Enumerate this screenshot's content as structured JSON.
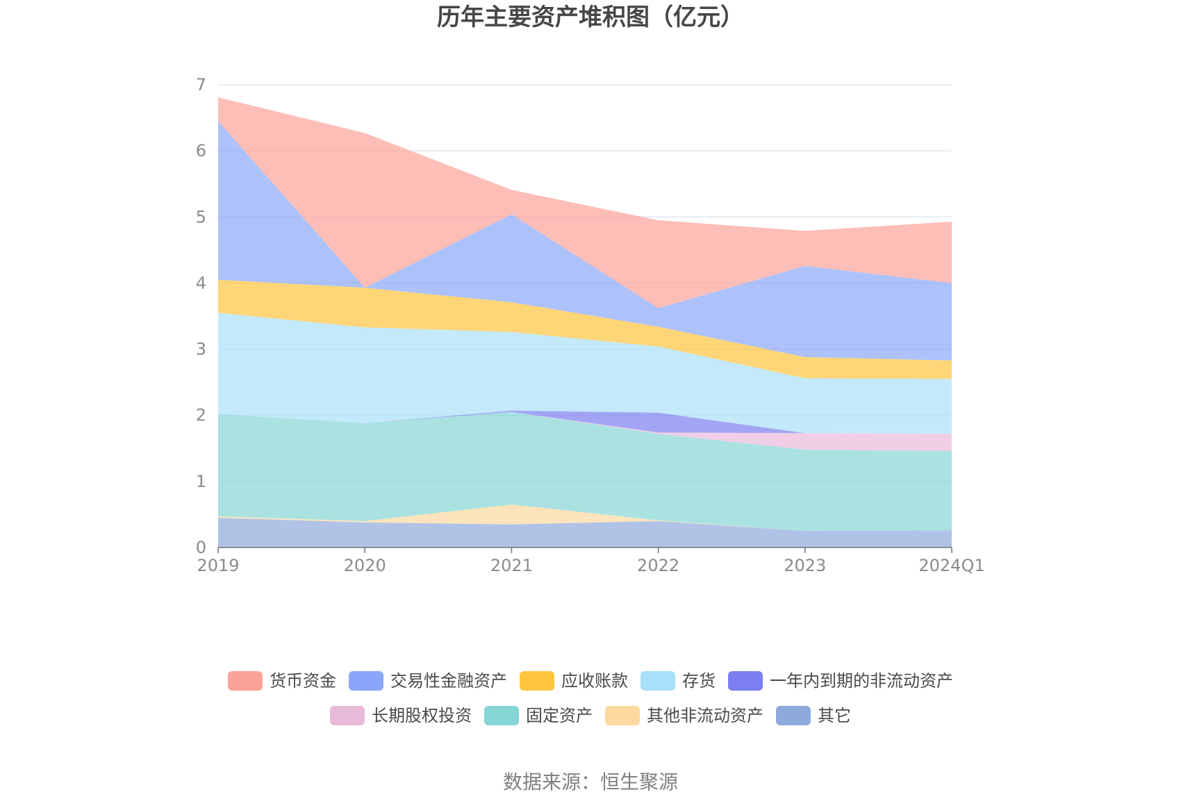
{
  "source": "数据来源：恒生聚源",
  "chart_data": {
    "type": "area",
    "stacked": true,
    "title": "历年主要资产堆积图（亿元）",
    "xlabel": "",
    "ylabel": "",
    "ylim": [
      0,
      7
    ],
    "y_ticks": [
      0,
      1,
      2,
      3,
      4,
      5,
      6,
      7
    ],
    "grid": true,
    "legend_position": "bottom",
    "categories": [
      "2019",
      "2020",
      "2021",
      "2022",
      "2023",
      "2024Q1"
    ],
    "series": [
      {
        "name": "其它",
        "color": "#8eaadc",
        "values": [
          0.45,
          0.38,
          0.35,
          0.4,
          0.25,
          0.26
        ]
      },
      {
        "name": "其他非流动资产",
        "color": "#fdd9a0",
        "values": [
          0.02,
          0.02,
          0.3,
          0.01,
          0.0,
          0.0
        ]
      },
      {
        "name": "固定资产",
        "color": "#86d5d5",
        "values": [
          1.55,
          1.48,
          1.4,
          1.31,
          1.23,
          1.2
        ]
      },
      {
        "name": "长期股权投资",
        "color": "#e9b9da",
        "values": [
          0.0,
          0.0,
          0.0,
          0.02,
          0.25,
          0.26
        ]
      },
      {
        "name": "一年内到期的非流动资产",
        "color": "#7b7ff0",
        "values": [
          0.0,
          0.0,
          0.02,
          0.3,
          0.0,
          0.0
        ]
      },
      {
        "name": "存货",
        "color": "#a9e0fa",
        "values": [
          1.53,
          1.45,
          1.19,
          1.0,
          0.83,
          0.83
        ]
      },
      {
        "name": "应收账款",
        "color": "#fec53d",
        "values": [
          0.5,
          0.6,
          0.45,
          0.3,
          0.32,
          0.28
        ]
      },
      {
        "name": "交易性金融资产",
        "color": "#8aa6fa",
        "values": [
          2.4,
          0.0,
          1.33,
          0.28,
          1.38,
          1.17
        ]
      },
      {
        "name": "货币资金",
        "color": "#fba398",
        "values": [
          0.36,
          2.34,
          0.37,
          1.33,
          0.53,
          0.93
        ]
      }
    ],
    "legend": [
      {
        "name": "货币资金",
        "color": "#fba398"
      },
      {
        "name": "交易性金融资产",
        "color": "#8aa6fa"
      },
      {
        "name": "应收账款",
        "color": "#fec53d"
      },
      {
        "name": "存货",
        "color": "#a9e0fa"
      },
      {
        "name": "一年内到期的非流动资产",
        "color": "#7b7ff0"
      },
      {
        "name": "长期股权投资",
        "color": "#e9b9da"
      },
      {
        "name": "固定资产",
        "color": "#86d5d5"
      },
      {
        "name": "其他非流动资产",
        "color": "#fdd9a0"
      },
      {
        "name": "其它",
        "color": "#8eaadc"
      }
    ]
  }
}
